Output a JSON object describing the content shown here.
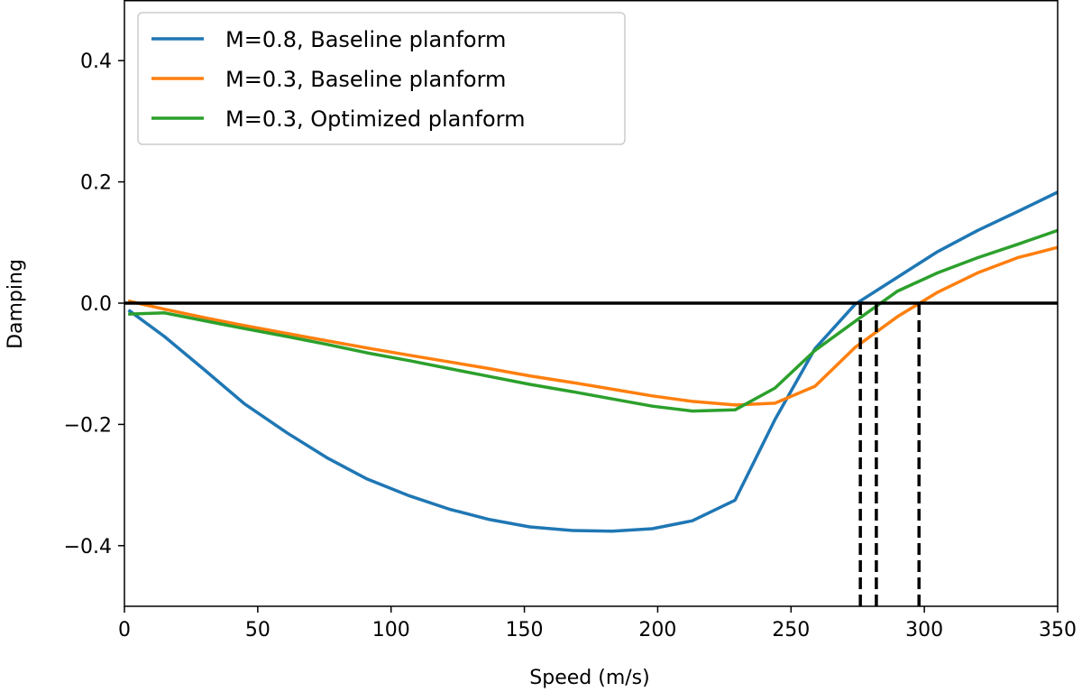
{
  "chart_data": {
    "type": "line",
    "xlabel": "Speed (m/s)",
    "ylabel": "Damping",
    "xlim": [
      0,
      350
    ],
    "ylim": [
      -0.5,
      0.5
    ],
    "x_ticks": [
      0,
      50,
      100,
      150,
      200,
      250,
      300,
      350
    ],
    "x_tick_labels": [
      "0",
      "50",
      "100",
      "150",
      "200",
      "250",
      "300",
      "350"
    ],
    "y_ticks": [
      -0.4,
      -0.2,
      0.0,
      0.2,
      0.4
    ],
    "y_tick_labels": [
      "−0.4",
      "−0.2",
      "0.0",
      "0.2",
      "0.4"
    ],
    "grid": false,
    "legend_position": "top-left",
    "series": [
      {
        "name": "M=0.8, Baseline planform",
        "color": "#1f77b4",
        "x": [
          2,
          15,
          30,
          45,
          61,
          76,
          91,
          107,
          122,
          137,
          152,
          168,
          183,
          198,
          213,
          229,
          244,
          259,
          274,
          290,
          305,
          320,
          335,
          350
        ],
        "y": [
          -0.013,
          -0.055,
          -0.11,
          -0.166,
          -0.214,
          -0.255,
          -0.29,
          -0.318,
          -0.34,
          -0.357,
          -0.369,
          -0.375,
          -0.376,
          -0.372,
          -0.359,
          -0.325,
          -0.192,
          -0.075,
          -0.002,
          0.043,
          0.085,
          0.12,
          0.151,
          0.183
        ]
      },
      {
        "name": "M=0.3, Baseline planform",
        "color": "#ff7f0e",
        "x": [
          2,
          15,
          30,
          45,
          61,
          76,
          91,
          107,
          122,
          137,
          152,
          168,
          183,
          198,
          213,
          229,
          244,
          259,
          274,
          290,
          305,
          320,
          335,
          350
        ],
        "y": [
          0.003,
          -0.01,
          -0.024,
          -0.037,
          -0.05,
          -0.062,
          -0.074,
          -0.086,
          -0.097,
          -0.108,
          -0.12,
          -0.131,
          -0.142,
          -0.153,
          -0.162,
          -0.168,
          -0.165,
          -0.137,
          -0.073,
          -0.022,
          0.018,
          0.05,
          0.075,
          0.092
        ]
      },
      {
        "name": "M=0.3, Optimized planform",
        "color": "#2ca02c",
        "x": [
          2,
          15,
          30,
          45,
          61,
          76,
          91,
          107,
          122,
          137,
          152,
          168,
          183,
          198,
          213,
          229,
          244,
          259,
          274,
          290,
          305,
          320,
          335,
          350
        ],
        "y": [
          -0.018,
          -0.016,
          -0.029,
          -0.042,
          -0.055,
          -0.068,
          -0.082,
          -0.095,
          -0.108,
          -0.121,
          -0.134,
          -0.146,
          -0.158,
          -0.17,
          -0.178,
          -0.176,
          -0.14,
          -0.078,
          -0.03,
          0.02,
          0.05,
          0.075,
          0.097,
          0.12
        ]
      }
    ],
    "reference_line": {
      "y": 0.0,
      "color": "#000000"
    },
    "flutter_markers": [
      276,
      282,
      298
    ]
  }
}
